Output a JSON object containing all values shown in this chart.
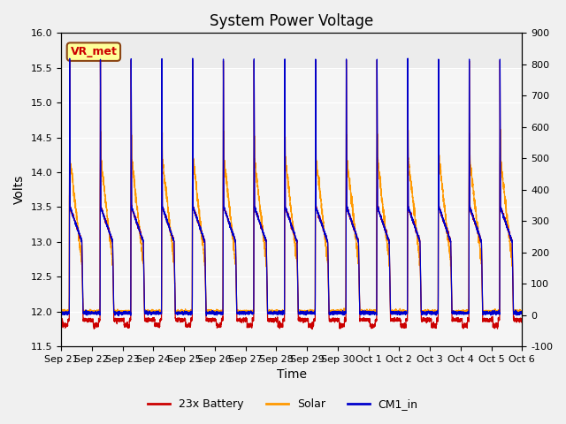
{
  "title": "System Power Voltage",
  "xlabel": "Time",
  "ylabel_left": "Volts",
  "ylim_left": [
    11.5,
    16.0
  ],
  "ylim_right": [
    -100,
    900
  ],
  "yticks_left": [
    11.5,
    12.0,
    12.5,
    13.0,
    13.5,
    14.0,
    14.5,
    15.0,
    15.5,
    16.0
  ],
  "yticks_right": [
    -100,
    0,
    100,
    200,
    300,
    400,
    500,
    600,
    700,
    800,
    900
  ],
  "annotation_text": "VR_met",
  "annotation_color": "#cc0000",
  "annotation_bg": "#ffff99",
  "annotation_border": "#8B4513",
  "line_colors": {
    "battery": "#cc0000",
    "solar": "#ff9900",
    "cm1": "#0000cc"
  },
  "legend_labels": [
    "23x Battery",
    "Solar",
    "CM1_in"
  ],
  "x_tick_labels": [
    "Sep 21",
    "Sep 22",
    "Sep 23",
    "Sep 24",
    "Sep 25",
    "Sep 26",
    "Sep 27",
    "Sep 28",
    "Sep 29",
    "Sep 30",
    "Oct 1",
    "Oct 2",
    "Oct 3",
    "Oct 4",
    "Oct 5",
    "Oct 6"
  ],
  "num_days": 15,
  "title_fontsize": 12,
  "axis_label_fontsize": 10,
  "tick_fontsize": 8
}
